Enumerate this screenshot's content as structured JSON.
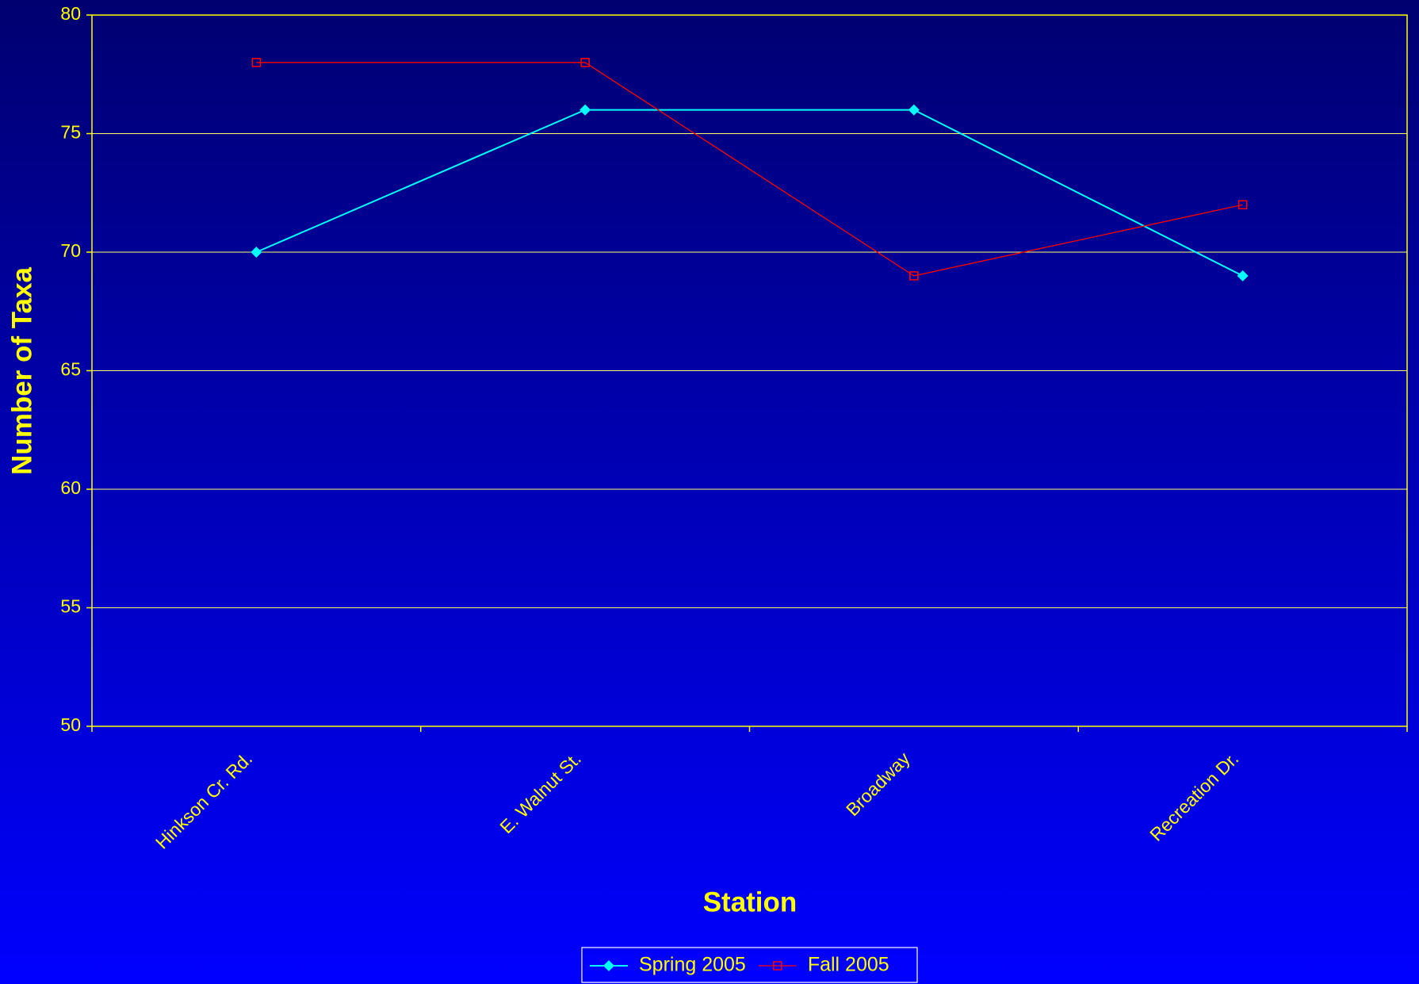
{
  "chart_data": {
    "type": "line",
    "categories": [
      "Hinkson Cr. Rd.",
      "E. Walnut St.",
      "Broadway",
      "Recreation Dr."
    ],
    "series": [
      {
        "name": "Spring 2005",
        "color": "#00ffff",
        "marker": "diamond",
        "values": [
          70,
          76,
          76,
          69
        ]
      },
      {
        "name": "Fall 2005",
        "color": "#ff0000",
        "marker": "square",
        "values": [
          78,
          78,
          69,
          72
        ]
      }
    ],
    "x_label": "Station",
    "y_label": "Number of Taxa",
    "ylim": [
      50,
      80
    ],
    "yticks": [
      50,
      55,
      60,
      65,
      70,
      75,
      80
    ],
    "grid": true,
    "legend": "bottom"
  }
}
